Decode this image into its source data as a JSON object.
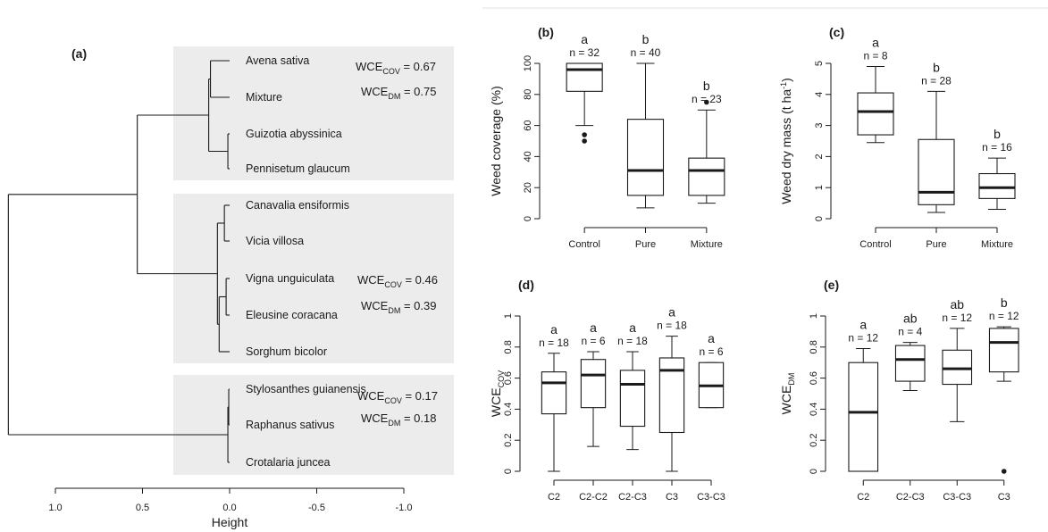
{
  "chart_data": [
    {
      "panel": "(a)",
      "type": "dendrogram",
      "xlabel": "Height",
      "x_ticks": [
        "1.0",
        "0.5",
        "0.0",
        "-0.5",
        "-1.0"
      ],
      "xlim": [
        1.15,
        -1.3
      ],
      "groups": [
        {
          "species": [
            "Avena sativa",
            "Mixture",
            "Guizotia abyssinica",
            "Pennisetum glaucum"
          ],
          "wce_cov": "0.67",
          "wce_dm": "0.75"
        },
        {
          "species": [
            "Canavalia ensiformis",
            "Vicia villosa",
            "Vigna unguiculata",
            "Eleusine coracana",
            "Sorghum bicolor"
          ],
          "wce_cov": "0.46",
          "wce_dm": "0.39"
        },
        {
          "species": [
            "Stylosanthes guianensis",
            "Raphanus sativus",
            "Crotalaria juncea"
          ],
          "wce_cov": "0.17",
          "wce_dm": "0.18"
        }
      ],
      "merge_heights": {
        "avena_mixture": 0.11,
        "guizotia_pennisetum": 0.01,
        "group1": 0.12,
        "canavalia_vicia": 0.03,
        "vigna_eleusine": 0.02,
        "upper_vigna_sorghum": 0.06,
        "group2": 0.07,
        "groups_1_2": 0.53,
        "stylo_raphanus": 0.005,
        "group3": 0.01,
        "root": 1.27
      },
      "wce_prefix": "WCE",
      "wce_cov_sub": "COV",
      "wce_dm_sub": "DM"
    },
    {
      "panel": "(b)",
      "type": "boxplot",
      "ylabel": "Weed coverage (%)",
      "ylim": [
        0,
        100
      ],
      "y_ticks": [
        "0",
        "20",
        "40",
        "60",
        "80",
        "100"
      ],
      "categories": [
        "Control",
        "Pure",
        "Mixture"
      ],
      "letters": [
        "a",
        "b",
        "b"
      ],
      "n_labels": [
        "n = 32",
        "n = 40",
        "n = 23"
      ],
      "boxes": [
        {
          "whisker_low": 60,
          "q1": 82,
          "median": 96,
          "q3": 100,
          "whisker_high": 100,
          "outliers": [
            54,
            50
          ]
        },
        {
          "whisker_low": 7,
          "q1": 15,
          "median": 31,
          "q3": 64,
          "whisker_high": 100,
          "outliers": []
        },
        {
          "whisker_low": 10,
          "q1": 15,
          "median": 31,
          "q3": 39,
          "whisker_high": 70,
          "outliers": [
            75
          ]
        }
      ]
    },
    {
      "panel": "(c)",
      "type": "boxplot",
      "ylabel_main": "Weed dry mass",
      "ylabel_unit": "t ha",
      "ylabel_exp": "-1",
      "ylim": [
        0,
        5
      ],
      "y_ticks": [
        "0",
        "1",
        "2",
        "3",
        "4",
        "5"
      ],
      "categories": [
        "Control",
        "Pure",
        "Mixture"
      ],
      "letters": [
        "a",
        "b",
        "b"
      ],
      "n_labels": [
        "n = 8",
        "n = 28",
        "n = 16"
      ],
      "boxes": [
        {
          "whisker_low": 2.45,
          "q1": 2.7,
          "median": 3.45,
          "q3": 4.05,
          "whisker_high": 4.9,
          "outliers": []
        },
        {
          "whisker_low": 0.2,
          "q1": 0.45,
          "median": 0.85,
          "q3": 2.55,
          "whisker_high": 4.1,
          "outliers": []
        },
        {
          "whisker_low": 0.3,
          "q1": 0.65,
          "median": 1.0,
          "q3": 1.45,
          "whisker_high": 1.95,
          "outliers": []
        }
      ]
    },
    {
      "panel": "(d)",
      "type": "boxplot",
      "ylabel_main": "WCE",
      "ylabel_sub": "COV",
      "ylim": [
        0,
        1
      ],
      "y_ticks": [
        "0",
        "0.2",
        "0.4",
        "0.6",
        "0.8",
        "1"
      ],
      "categories": [
        "C2",
        "C2-C2",
        "C2-C3",
        "C3",
        "C3-C3"
      ],
      "letters": [
        "a",
        "a",
        "a",
        "a",
        "a"
      ],
      "n_labels": [
        "n = 18",
        "n = 6",
        "n = 18",
        "n = 18",
        "n = 6"
      ],
      "boxes": [
        {
          "whisker_low": 0.0,
          "q1": 0.37,
          "median": 0.57,
          "q3": 0.64,
          "whisker_high": 0.76,
          "outliers": []
        },
        {
          "whisker_low": 0.16,
          "q1": 0.41,
          "median": 0.62,
          "q3": 0.72,
          "whisker_high": 0.77,
          "outliers": []
        },
        {
          "whisker_low": 0.14,
          "q1": 0.29,
          "median": 0.56,
          "q3": 0.65,
          "whisker_high": 0.77,
          "outliers": []
        },
        {
          "whisker_low": 0.0,
          "q1": 0.25,
          "median": 0.65,
          "q3": 0.73,
          "whisker_high": 0.87,
          "outliers": []
        },
        {
          "whisker_low": 0.41,
          "q1": 0.41,
          "median": 0.55,
          "q3": 0.7,
          "whisker_high": 0.7,
          "outliers": []
        }
      ]
    },
    {
      "panel": "(e)",
      "type": "boxplot",
      "ylabel_main": "WCE",
      "ylabel_sub": "DM",
      "ylim": [
        0,
        1
      ],
      "y_ticks": [
        "0",
        "0.2",
        "0.4",
        "0.6",
        "0.8",
        "1"
      ],
      "categories": [
        "C2",
        "C2-C3",
        "C3-C3",
        "C3"
      ],
      "letters": [
        "a",
        "ab",
        "ab",
        "b"
      ],
      "n_labels": [
        "n = 12",
        "n = 4",
        "n = 12",
        "n = 12"
      ],
      "boxes": [
        {
          "whisker_low": 0.0,
          "q1": 0.0,
          "median": 0.38,
          "q3": 0.7,
          "whisker_high": 0.79,
          "outliers": []
        },
        {
          "whisker_low": 0.52,
          "q1": 0.58,
          "median": 0.72,
          "q3": 0.81,
          "whisker_high": 0.83,
          "outliers": []
        },
        {
          "whisker_low": 0.32,
          "q1": 0.56,
          "median": 0.66,
          "q3": 0.78,
          "whisker_high": 0.92,
          "outliers": []
        },
        {
          "whisker_low": 0.58,
          "q1": 0.64,
          "median": 0.83,
          "q3": 0.92,
          "whisker_high": 0.93,
          "outliers": [
            0.0
          ]
        }
      ]
    }
  ]
}
